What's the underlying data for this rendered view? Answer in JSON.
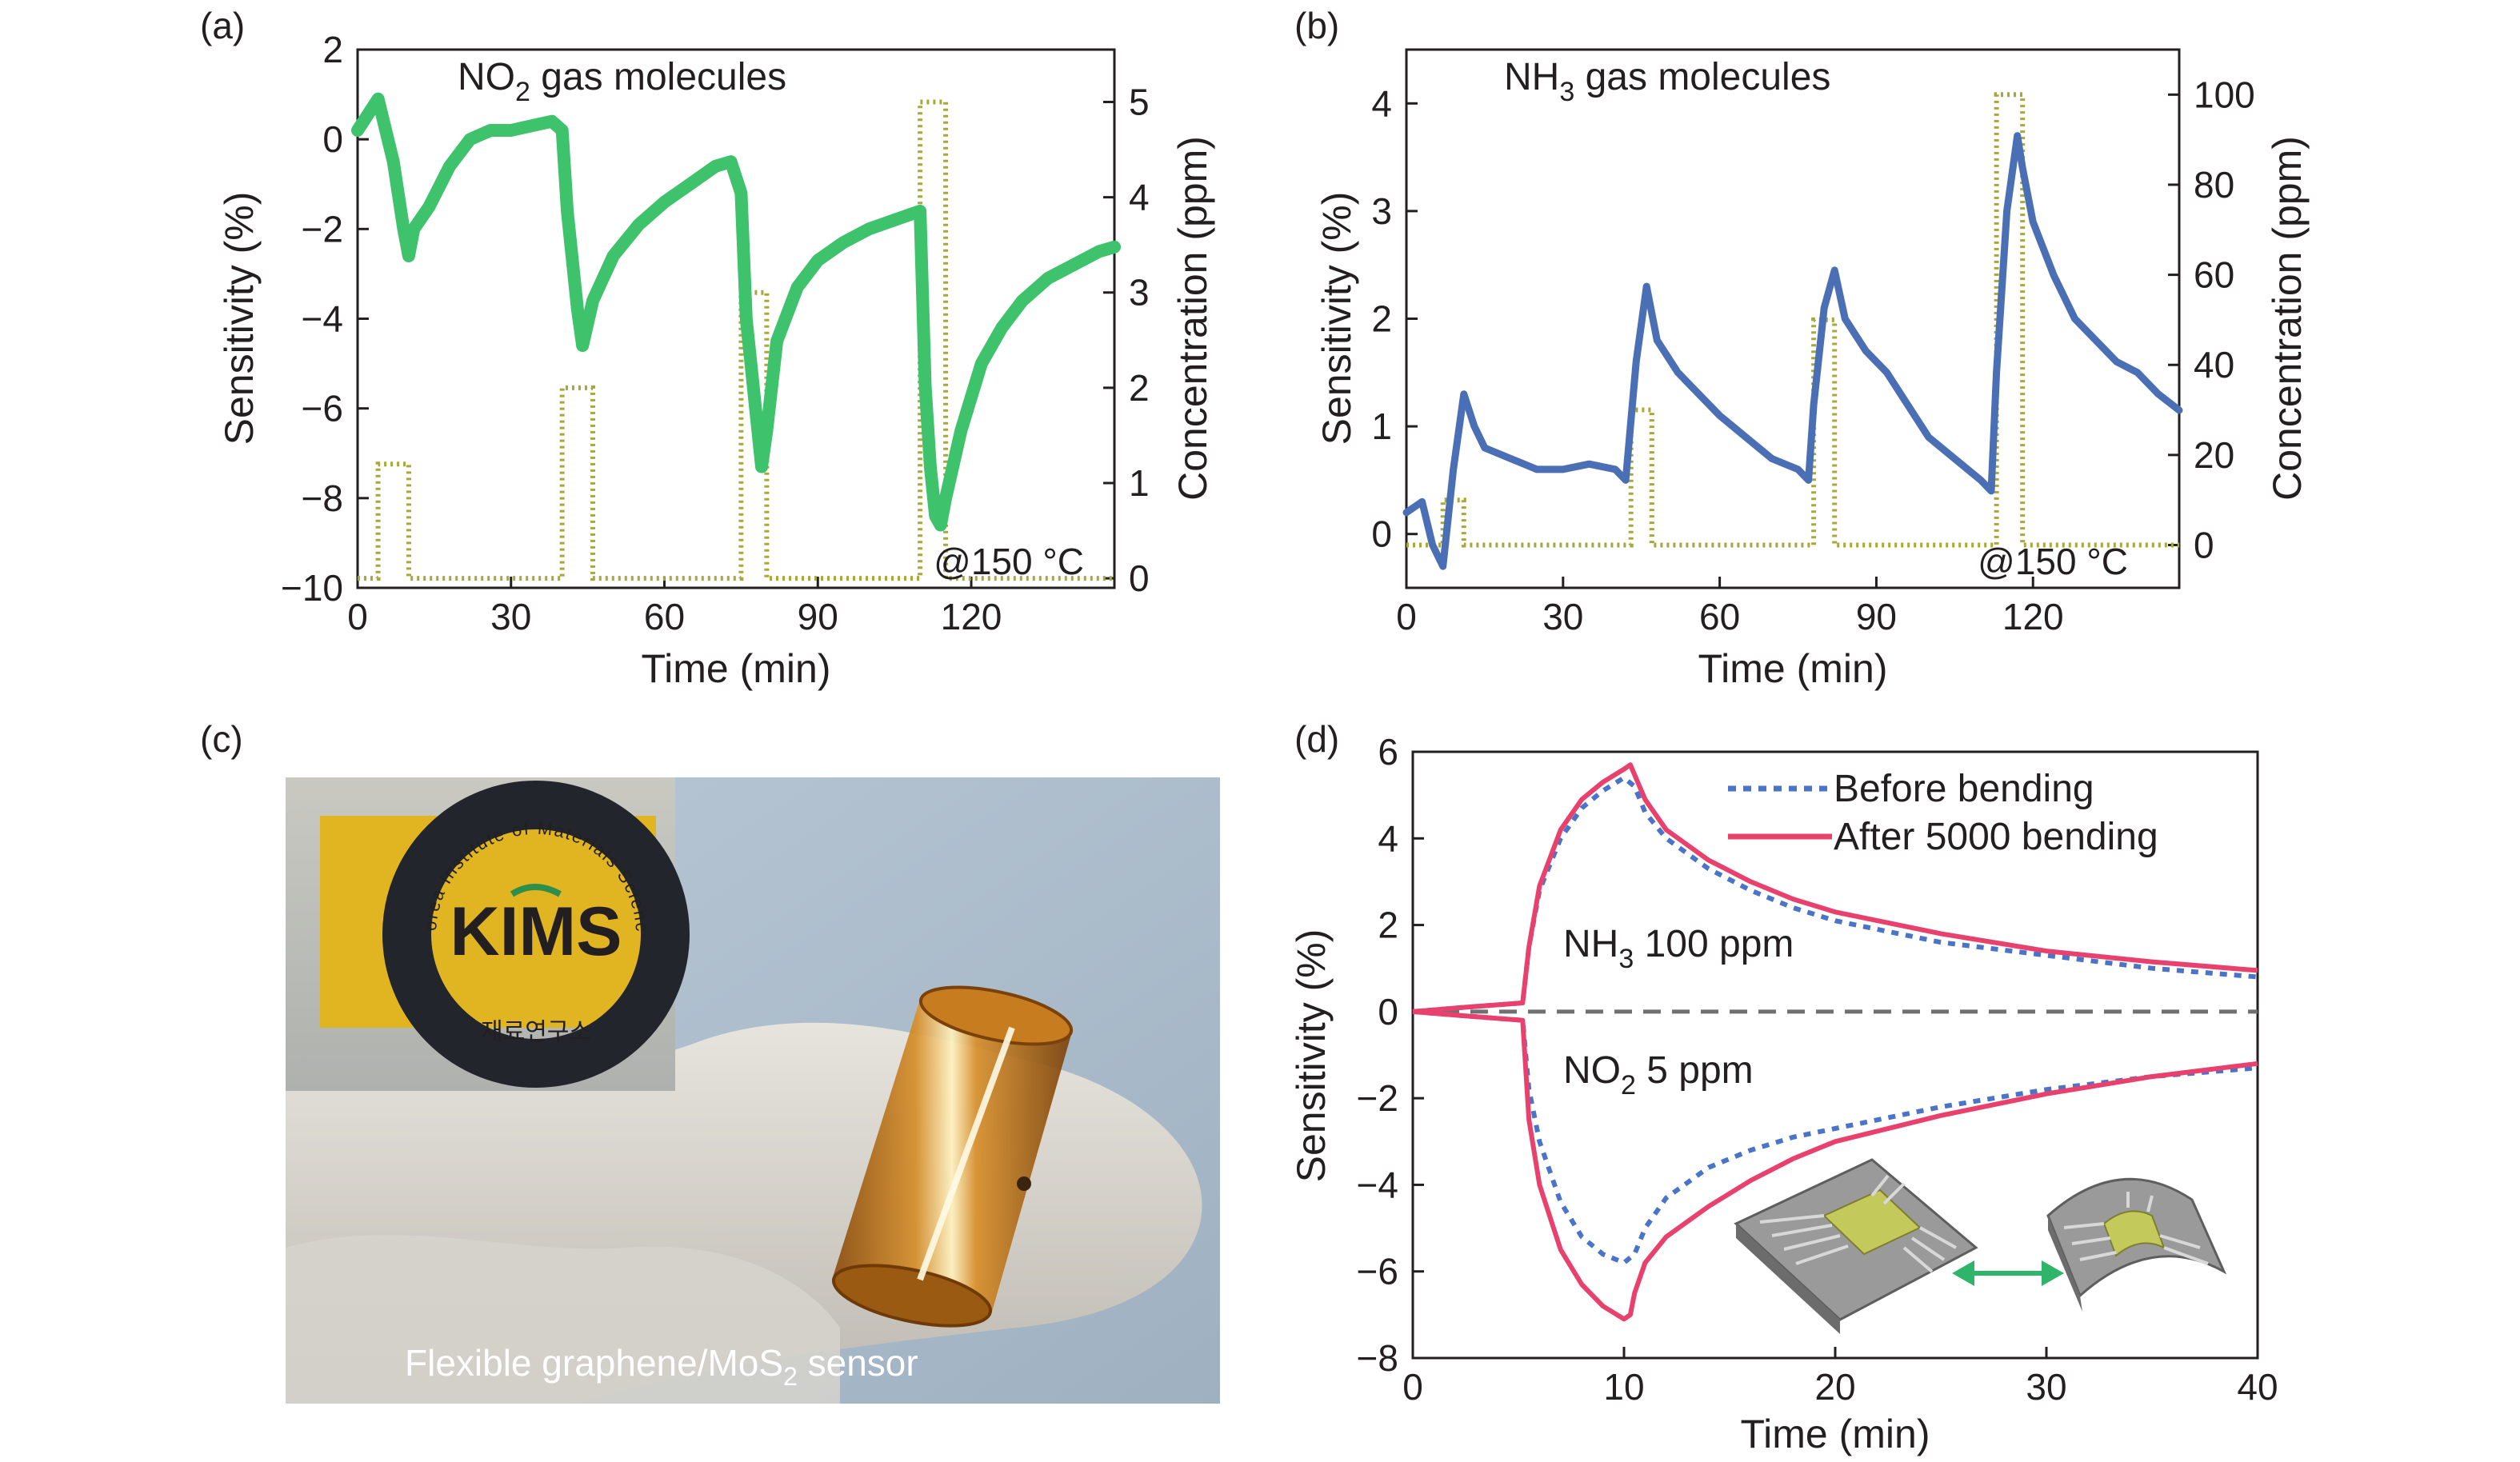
{
  "panels": {
    "a": {
      "label": "(a)",
      "annotation": {
        "pre": "NO",
        "sub": "2",
        "post": " gas molecules"
      },
      "temp_note": "@150 °C",
      "xlabel": "Time (min)",
      "ylabel_left": "Sensitivity (%)",
      "ylabel_right": "Concentration (ppm)"
    },
    "b": {
      "label": "(b)",
      "annotation": {
        "pre": "NH",
        "sub": "3",
        "post": " gas molecules"
      },
      "temp_note": "@150 °C",
      "xlabel": "Time (min)",
      "ylabel_left": "Sensitivity (%)",
      "ylabel_right": "Concentration (ppm)"
    },
    "c": {
      "label": "(c)",
      "caption": {
        "pre": "Flexible graphene/MoS",
        "sub": "2",
        "post": " sensor"
      },
      "logo": {
        "text": "KIMS",
        "ring_text": "Korea Institute of Materials Science",
        "korean": "재료연구소"
      }
    },
    "d": {
      "label": "(d)",
      "xlabel": "Time (min)",
      "ylabel": "Sensitivity (%)",
      "annot_nh3": {
        "pre": "NH",
        "sub": "3",
        "post": " 100 ppm"
      },
      "annot_no2": {
        "pre": "NO",
        "sub": "2",
        "post": " 5 ppm"
      },
      "legend": [
        "Before bending",
        "After 5000 bending"
      ]
    }
  },
  "colors": {
    "no2_series": "#3ec26b",
    "nh3_series": "#4a6fb5",
    "concentration": "#a8a83a",
    "before_bending": "#4a74c8",
    "after_bending": "#e8416e",
    "zero_line": "#707070",
    "arrow": "#2fb56a"
  },
  "chart_data": [
    {
      "type": "line",
      "panel": "a",
      "xlim": [
        0,
        148
      ],
      "xticks": [
        0,
        30,
        60,
        90,
        120
      ],
      "ylim_left": [
        -10,
        2
      ],
      "yticks_left": [
        -10,
        -8,
        -6,
        -4,
        -2,
        0,
        2
      ],
      "ylim_right": [
        -0.1,
        5.55
      ],
      "yticks_right": [
        0,
        1,
        2,
        3,
        4,
        5
      ],
      "series": [
        {
          "axis": "left",
          "x": [
            0,
            4,
            7,
            9,
            10,
            11,
            14,
            18,
            22,
            26,
            30,
            34,
            38,
            40,
            41,
            43,
            44,
            46,
            50,
            55,
            60,
            65,
            70,
            73,
            75,
            76,
            78,
            79,
            80,
            82,
            86,
            90,
            95,
            100,
            105,
            110,
            111,
            112,
            113,
            114,
            115,
            118,
            122,
            126,
            130,
            135,
            140,
            145,
            148
          ],
          "y": [
            0.2,
            0.9,
            -0.5,
            -2.0,
            -2.6,
            -2.0,
            -1.5,
            -0.6,
            0.0,
            0.2,
            0.2,
            0.3,
            0.4,
            0.2,
            -1.6,
            -3.8,
            -4.6,
            -3.6,
            -2.6,
            -1.9,
            -1.4,
            -1.0,
            -0.6,
            -0.5,
            -1.2,
            -4.0,
            -6.2,
            -7.3,
            -6.5,
            -4.5,
            -3.3,
            -2.7,
            -2.3,
            -2.0,
            -1.8,
            -1.6,
            -5.5,
            -7.3,
            -8.4,
            -8.6,
            -8.0,
            -6.5,
            -5.0,
            -4.2,
            -3.6,
            -3.1,
            -2.8,
            -2.5,
            -2.4
          ]
        },
        {
          "axis": "right",
          "style": "dotted",
          "x": [
            0,
            4,
            4,
            10,
            10,
            40,
            40,
            46,
            46,
            75,
            75,
            80,
            80,
            110,
            110,
            115,
            115,
            148
          ],
          "y": [
            0,
            0,
            1.2,
            1.2,
            0,
            0,
            2.0,
            2.0,
            0,
            0,
            3.0,
            3.0,
            0,
            0,
            5.0,
            5.0,
            0,
            0
          ]
        }
      ]
    },
    {
      "type": "line",
      "panel": "b",
      "xlim": [
        0,
        148
      ],
      "xticks": [
        0,
        30,
        60,
        90,
        120
      ],
      "ylim_left": [
        -0.5,
        4.5
      ],
      "yticks_left": [
        0,
        1,
        2,
        3,
        4
      ],
      "ylim_right": [
        -9.5,
        110
      ],
      "yticks_right": [
        0,
        20,
        40,
        60,
        80,
        100
      ],
      "series": [
        {
          "axis": "left",
          "x": [
            0,
            3,
            5,
            7,
            9,
            11,
            13,
            15,
            20,
            25,
            30,
            35,
            40,
            42,
            44,
            46,
            48,
            52,
            56,
            60,
            65,
            70,
            75,
            77,
            78,
            80,
            82,
            84,
            88,
            92,
            96,
            100,
            105,
            110,
            112,
            113,
            115,
            117,
            118,
            120,
            124,
            128,
            132,
            136,
            140,
            144,
            148
          ],
          "y": [
            0.2,
            0.3,
            -0.1,
            -0.3,
            0.6,
            1.3,
            1.0,
            0.8,
            0.7,
            0.6,
            0.6,
            0.65,
            0.6,
            0.5,
            1.6,
            2.3,
            1.8,
            1.5,
            1.3,
            1.1,
            0.9,
            0.7,
            0.6,
            0.5,
            1.2,
            2.1,
            2.45,
            2.0,
            1.7,
            1.5,
            1.2,
            0.9,
            0.7,
            0.5,
            0.4,
            1.5,
            3.0,
            3.7,
            3.4,
            2.9,
            2.4,
            2.0,
            1.8,
            1.6,
            1.5,
            1.3,
            1.15
          ]
        },
        {
          "axis": "right",
          "style": "dotted",
          "x": [
            0,
            7,
            7,
            11,
            11,
            43,
            43,
            47,
            47,
            78,
            78,
            82,
            82,
            113,
            113,
            118,
            118,
            148
          ],
          "y": [
            0,
            0,
            10,
            10,
            0,
            0,
            30,
            30,
            0,
            0,
            50,
            50,
            0,
            0,
            100,
            100,
            0,
            0
          ]
        }
      ]
    },
    {
      "type": "line",
      "panel": "d",
      "xlim": [
        0,
        40
      ],
      "xticks": [
        0,
        10,
        20,
        30,
        40
      ],
      "ylim": [
        -8,
        6
      ],
      "yticks": [
        -8,
        -6,
        -4,
        -2,
        0,
        2,
        4,
        6
      ],
      "series": [
        {
          "name": "Before bending",
          "style": "dotted",
          "x": [
            0,
            2.5,
            5.2,
            5.5,
            6,
            7,
            8,
            9,
            10,
            10.5,
            11,
            12,
            14,
            16,
            18,
            20,
            25,
            30,
            35,
            40
          ],
          "y": [
            0,
            0.1,
            0.2,
            1.5,
            2.8,
            4.0,
            4.7,
            5.1,
            5.4,
            5.2,
            4.6,
            4.0,
            3.3,
            2.8,
            2.4,
            2.1,
            1.6,
            1.3,
            1.0,
            0.8
          ]
        },
        {
          "name": "Before bending",
          "style": "dotted",
          "x": [
            0,
            2.5,
            5.2,
            5.5,
            6,
            7,
            8,
            9,
            10,
            10.5,
            11,
            12,
            14,
            16,
            18,
            20,
            25,
            30,
            35,
            40
          ],
          "y": [
            0,
            -0.1,
            -0.2,
            -1.8,
            -3.0,
            -4.4,
            -5.2,
            -5.6,
            -5.8,
            -5.6,
            -5.0,
            -4.3,
            -3.6,
            -3.2,
            -2.9,
            -2.7,
            -2.2,
            -1.8,
            -1.5,
            -1.3
          ]
        },
        {
          "name": "After 5000 bending",
          "style": "solid",
          "x": [
            0,
            2.5,
            5.2,
            5.5,
            6,
            7,
            8,
            9,
            10,
            10.3,
            11,
            12,
            14,
            16,
            18,
            20,
            25,
            30,
            35,
            40
          ],
          "y": [
            0,
            0.1,
            0.2,
            1.5,
            2.9,
            4.2,
            4.9,
            5.3,
            5.6,
            5.7,
            4.9,
            4.2,
            3.5,
            3.0,
            2.6,
            2.3,
            1.8,
            1.4,
            1.15,
            0.95
          ]
        },
        {
          "name": "After 5000 bending",
          "style": "solid",
          "x": [
            0,
            2.5,
            5.2,
            5.5,
            6,
            7,
            8,
            9,
            10,
            10.3,
            10.5,
            11,
            12,
            14,
            16,
            18,
            20,
            25,
            30,
            35,
            40
          ],
          "y": [
            0,
            -0.1,
            -0.2,
            -2.5,
            -4.0,
            -5.5,
            -6.3,
            -6.8,
            -7.1,
            -7.0,
            -6.5,
            -5.8,
            -5.2,
            -4.5,
            -3.9,
            -3.4,
            -3.0,
            -2.4,
            -1.9,
            -1.5,
            -1.2
          ]
        }
      ]
    }
  ]
}
